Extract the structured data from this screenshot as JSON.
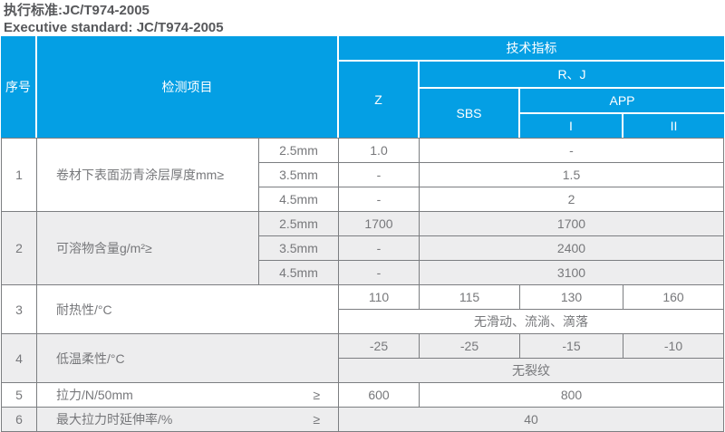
{
  "title": {
    "line1": "执行标准:JC/T974-2005",
    "line2": "Executive standard: JC/T974-2005"
  },
  "colors": {
    "header_blue": "#049FE4",
    "shaded_row_gray": "#EDEDEE",
    "border_gray": "#7C7E81",
    "body_text_gray": "#77787B",
    "title_text": "#57585B"
  },
  "header": {
    "seq": "序号",
    "item": "检测项目",
    "tech": "技术指标",
    "z": "Z",
    "rj": "R、J",
    "sbs": "SBS",
    "app": "APP",
    "app_i": "I",
    "app_ii": "II"
  },
  "rows": [
    {
      "no": "1",
      "label": "卷材下表面沥青涂层厚度mm≥",
      "subs": [
        {
          "thickness": "2.5mm",
          "z": "1.0",
          "rj": "-"
        },
        {
          "thickness": "3.5mm",
          "z": "-",
          "rj": "1.5"
        },
        {
          "thickness": "4.5mm",
          "z": "-",
          "rj": "2"
        }
      ]
    },
    {
      "no": "2",
      "label": "可溶物含量g/m²≥",
      "subs": [
        {
          "thickness": "2.5mm",
          "z": "1700",
          "rj": "1700"
        },
        {
          "thickness": "3.5mm",
          "z": "-",
          "rj": "2400"
        },
        {
          "thickness": "4.5mm",
          "z": "-",
          "rj": "3100"
        }
      ]
    },
    {
      "no": "3",
      "label": "耐热性/°C",
      "values": [
        "110",
        "115",
        "130",
        "160"
      ],
      "note": "无滑动、流淌、滴落"
    },
    {
      "no": "4",
      "label": "低温柔性/°C",
      "values": [
        "-25",
        "-25",
        "-15",
        "-10"
      ],
      "note": "无裂纹"
    },
    {
      "no": "5",
      "label": "拉力/N/50mm",
      "gte": "≥",
      "z": "600",
      "rj": "800"
    },
    {
      "no": "6",
      "label": "最大拉力时延伸率/%",
      "gte": "≥",
      "all": "40"
    }
  ]
}
